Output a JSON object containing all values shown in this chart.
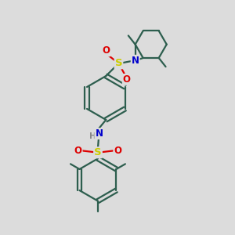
{
  "bg_color": "#dcdcdc",
  "bond_color": "#2d5e4e",
  "S_color": "#cccc00",
  "O_color": "#dd0000",
  "N_color": "#0000cc",
  "lw": 1.6,
  "fs": 8.5,
  "xlim": [
    0,
    10
  ],
  "ylim": [
    0,
    10
  ]
}
